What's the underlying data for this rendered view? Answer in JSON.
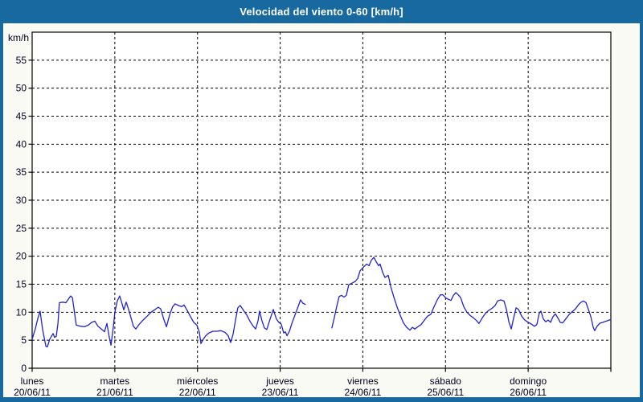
{
  "title": "Velocidad del viento 0-60 [km/h]",
  "colors": {
    "frame": "#17699F",
    "canvas_bg": "#FAFAF4",
    "plot_bg": "#FFFFFF",
    "grid": "#000000",
    "axis": "#000000",
    "label": "#000020",
    "title_text": "#FFFFFF",
    "line": "#2222CC"
  },
  "chart_data": {
    "type": "line",
    "title": "Velocidad del viento 0-60 [km/h]",
    "ylabel": "km/h",
    "ylim": [
      0,
      60
    ],
    "ytick_step": 5,
    "ytick_labels": [
      "0",
      "5",
      "10",
      "15",
      "20",
      "25",
      "30",
      "35",
      "40",
      "45",
      "50",
      "55"
    ],
    "grid": "dashed",
    "legend": "none",
    "x_unit": "hours",
    "xlim": [
      0,
      168
    ],
    "days": [
      {
        "name": "lunes",
        "date": "20/06/11"
      },
      {
        "name": "martes",
        "date": "21/06/11"
      },
      {
        "name": "miércoles",
        "date": "22/06/11"
      },
      {
        "name": "jueves",
        "date": "23/06/11"
      },
      {
        "name": "viernes",
        "date": "24/06/11"
      },
      {
        "name": "sábado",
        "date": "25/06/11"
      },
      {
        "name": "domingo",
        "date": "26/06/11"
      }
    ],
    "series": [
      {
        "name": "velocidad del viento",
        "color": "#2222CC",
        "segments": [
          [
            [
              0,
              5.2
            ],
            [
              0.9,
              7.0
            ],
            [
              1.6,
              8.8
            ],
            [
              2.3,
              10.2
            ],
            [
              3.0,
              7.0
            ],
            [
              4.0,
              3.9
            ],
            [
              4.4,
              3.8
            ],
            [
              5.1,
              5.2
            ],
            [
              6.1,
              6.2
            ],
            [
              6.5,
              5.5
            ],
            [
              7.0,
              5.7
            ],
            [
              7.5,
              8.0
            ],
            [
              7.9,
              11.7
            ],
            [
              8.9,
              11.8
            ],
            [
              9.8,
              11.7
            ],
            [
              10.7,
              12.5
            ],
            [
              11.2,
              12.9
            ],
            [
              11.7,
              12.6
            ],
            [
              12.4,
              9.5
            ],
            [
              12.8,
              7.7
            ],
            [
              14.0,
              7.5
            ],
            [
              15.2,
              7.4
            ],
            [
              16.3,
              7.7
            ],
            [
              17.3,
              8.2
            ],
            [
              18.2,
              8.4
            ],
            [
              19.1,
              7.5
            ],
            [
              20.1,
              7.0
            ],
            [
              21.0,
              6.5
            ],
            [
              21.7,
              8.0
            ],
            [
              22.4,
              5.5
            ],
            [
              22.9,
              4.1
            ],
            [
              23.6,
              7.5
            ],
            [
              24.0,
              10.0
            ],
            [
              24.7,
              12.0
            ],
            [
              25.4,
              12.9
            ],
            [
              26.1,
              11.5
            ],
            [
              26.6,
              10.4
            ],
            [
              27.3,
              11.8
            ],
            [
              28.0,
              10.5
            ],
            [
              28.7,
              9.0
            ],
            [
              29.4,
              7.5
            ],
            [
              30.1,
              7.0
            ],
            [
              31.0,
              7.8
            ],
            [
              32.2,
              8.6
            ],
            [
              33.4,
              9.3
            ],
            [
              34.5,
              10.0
            ],
            [
              35.7,
              10.5
            ],
            [
              36.6,
              10.9
            ],
            [
              37.3,
              10.6
            ],
            [
              38.3,
              8.6
            ],
            [
              39.0,
              7.4
            ],
            [
              39.9,
              9.5
            ],
            [
              40.8,
              11.0
            ],
            [
              41.5,
              11.5
            ],
            [
              42.5,
              11.2
            ],
            [
              43.4,
              11.0
            ],
            [
              44.1,
              11.3
            ],
            [
              45.0,
              10.3
            ],
            [
              46.0,
              9.2
            ],
            [
              46.9,
              8.2
            ],
            [
              47.8,
              7.7
            ],
            [
              48.5,
              6.5
            ],
            [
              49.0,
              4.4
            ],
            [
              49.7,
              5.2
            ],
            [
              50.4,
              5.8
            ],
            [
              51.3,
              6.3
            ],
            [
              52.5,
              6.6
            ],
            [
              53.7,
              6.6
            ],
            [
              54.8,
              6.7
            ],
            [
              56.0,
              6.4
            ],
            [
              56.9,
              5.8
            ],
            [
              57.6,
              4.6
            ],
            [
              58.3,
              6.0
            ],
            [
              59.0,
              8.5
            ],
            [
              59.7,
              10.8
            ],
            [
              60.4,
              11.2
            ],
            [
              61.4,
              10.3
            ],
            [
              62.3,
              9.5
            ],
            [
              63.2,
              8.4
            ],
            [
              64.2,
              7.5
            ],
            [
              64.9,
              7.0
            ],
            [
              65.6,
              8.5
            ],
            [
              66.0,
              10.2
            ],
            [
              66.7,
              8.5
            ],
            [
              67.4,
              7.2
            ],
            [
              68.1,
              6.9
            ],
            [
              69.1,
              8.8
            ],
            [
              70.0,
              10.5
            ],
            [
              70.9,
              8.8
            ],
            [
              71.6,
              8.2
            ],
            [
              72.3,
              7.9
            ],
            [
              73.0,
              6.3
            ],
            [
              73.5,
              6.5
            ],
            [
              74.0,
              5.8
            ],
            [
              74.7,
              6.6
            ],
            [
              75.4,
              8.0
            ],
            [
              76.3,
              9.5
            ],
            [
              77.2,
              11.0
            ],
            [
              77.9,
              12.2
            ],
            [
              78.6,
              11.6
            ],
            [
              79.3,
              11.4
            ]
          ],
          [
            [
              87.0,
              7.2
            ],
            [
              87.7,
              9.0
            ],
            [
              88.4,
              11.0
            ],
            [
              89.1,
              12.8
            ],
            [
              89.8,
              13.0
            ],
            [
              90.5,
              12.7
            ],
            [
              91.2,
              13.0
            ],
            [
              91.9,
              14.9
            ],
            [
              92.9,
              15.2
            ],
            [
              93.8,
              15.5
            ],
            [
              94.5,
              16.0
            ],
            [
              95.2,
              17.4
            ],
            [
              96.1,
              18.0
            ],
            [
              97.1,
              18.6
            ],
            [
              97.8,
              18.3
            ],
            [
              98.5,
              19.3
            ],
            [
              99.2,
              19.8
            ],
            [
              99.9,
              19.0
            ],
            [
              100.6,
              18.3
            ],
            [
              101.0,
              18.6
            ],
            [
              101.7,
              17.2
            ],
            [
              102.4,
              16.2
            ],
            [
              103.4,
              16.6
            ],
            [
              104.1,
              14.6
            ],
            [
              105.0,
              12.7
            ],
            [
              105.9,
              11.0
            ],
            [
              106.9,
              9.4
            ],
            [
              107.8,
              8.1
            ],
            [
              108.7,
              7.3
            ],
            [
              109.7,
              6.8
            ],
            [
              110.4,
              7.3
            ],
            [
              111.1,
              7.0
            ],
            [
              112.0,
              7.4
            ],
            [
              112.9,
              7.8
            ],
            [
              113.9,
              8.6
            ],
            [
              114.8,
              9.3
            ],
            [
              115.7,
              9.6
            ],
            [
              116.7,
              11.0
            ],
            [
              117.6,
              12.2
            ],
            [
              118.5,
              13.1
            ],
            [
              119.2,
              13.1
            ],
            [
              120.2,
              12.5
            ],
            [
              120.9,
              12.3
            ],
            [
              121.6,
              12.1
            ],
            [
              122.3,
              13.0
            ],
            [
              123.0,
              13.5
            ],
            [
              123.7,
              13.1
            ],
            [
              124.4,
              12.6
            ],
            [
              125.3,
              11.0
            ],
            [
              126.2,
              10.0
            ],
            [
              127.2,
              9.4
            ],
            [
              128.1,
              9.0
            ],
            [
              129.0,
              8.5
            ],
            [
              129.7,
              8.0
            ],
            [
              130.7,
              9.0
            ],
            [
              131.6,
              9.8
            ],
            [
              132.5,
              10.3
            ],
            [
              133.5,
              10.7
            ],
            [
              134.4,
              11.2
            ],
            [
              135.1,
              12.0
            ],
            [
              136.0,
              12.2
            ],
            [
              137.0,
              12.0
            ],
            [
              137.7,
              10.5
            ],
            [
              138.4,
              8.3
            ],
            [
              139.1,
              7.0
            ],
            [
              139.8,
              9.0
            ],
            [
              140.5,
              10.8
            ],
            [
              141.2,
              10.5
            ],
            [
              142.1,
              9.3
            ],
            [
              143.0,
              8.6
            ],
            [
              144.0,
              8.2
            ],
            [
              144.9,
              7.9
            ],
            [
              145.8,
              7.5
            ],
            [
              146.5,
              7.8
            ],
            [
              147.2,
              9.8
            ],
            [
              147.7,
              10.2
            ],
            [
              148.4,
              8.8
            ],
            [
              149.1,
              8.3
            ],
            [
              149.8,
              8.6
            ],
            [
              150.5,
              8.2
            ],
            [
              151.2,
              9.2
            ],
            [
              151.9,
              9.7
            ],
            [
              152.6,
              9.0
            ],
            [
              153.3,
              8.2
            ],
            [
              154.0,
              8.1
            ],
            [
              154.9,
              8.8
            ],
            [
              155.9,
              9.6
            ],
            [
              156.8,
              10.1
            ],
            [
              157.7,
              10.6
            ],
            [
              158.7,
              11.4
            ],
            [
              159.4,
              11.8
            ],
            [
              160.1,
              12.0
            ],
            [
              160.8,
              11.7
            ],
            [
              161.5,
              10.5
            ],
            [
              162.2,
              9.2
            ],
            [
              162.9,
              7.3
            ],
            [
              163.3,
              6.7
            ],
            [
              164.0,
              7.5
            ],
            [
              164.7,
              8.0
            ],
            [
              165.7,
              8.2
            ],
            [
              166.6,
              8.4
            ],
            [
              167.5,
              8.6
            ],
            [
              168.0,
              8.7
            ]
          ]
        ]
      }
    ]
  }
}
